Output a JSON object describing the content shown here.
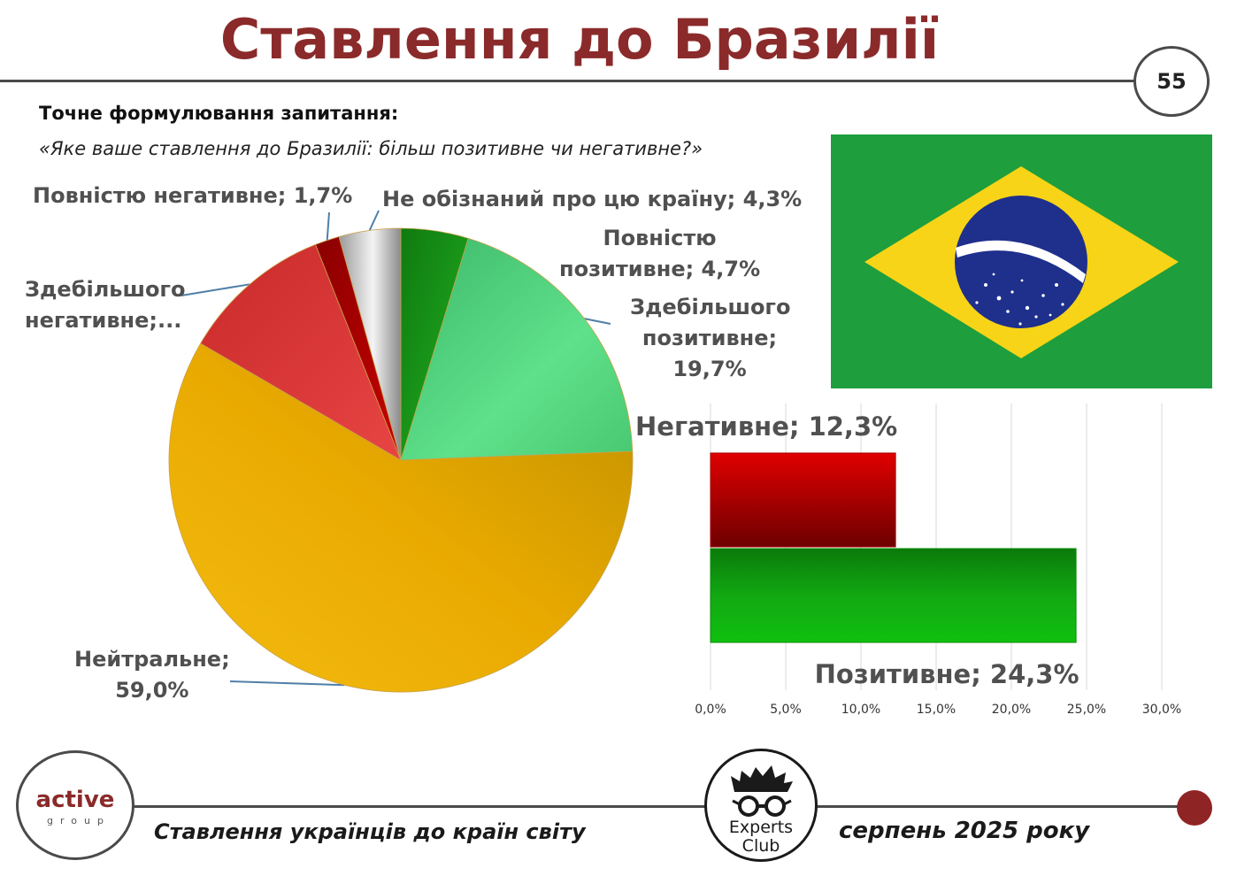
{
  "header": {
    "title": "Ставлення до Бразилії",
    "page_number": "55"
  },
  "question": {
    "label": "Точне формулювання запитання:",
    "text": "«Яке ваше ставлення до Бразилії: більш позитивне чи негативне?»"
  },
  "footer": {
    "left_text": "Ставлення українців до країн світу",
    "right_text": "серпень 2025 року",
    "active_logo_word": "active",
    "active_logo_sub": "group",
    "experts_logo_line1": "Experts",
    "experts_logo_line2": "Club"
  },
  "colors": {
    "title": "#8b2a2a",
    "accent_dot": "#8f2424"
  },
  "chart_data": [
    {
      "type": "pie",
      "title": "",
      "slices": [
        {
          "label": "Повністю позитивне",
          "value": 4.7,
          "color": "#1f9a1f",
          "data_label": [
            "Повністю",
            "позитивне; 4,7%"
          ]
        },
        {
          "label": "Здебільшого позитивне",
          "value": 19.7,
          "color": "#4fd07a",
          "data_label": [
            "Здебільшого",
            "позитивне;",
            "19,7%"
          ]
        },
        {
          "label": "Нейтральне",
          "value": 59.0,
          "color": "#e6a900",
          "data_label": [
            "Нейтральне;",
            "59,0%"
          ]
        },
        {
          "label": "Здебільшого негативне",
          "value": 10.6,
          "color": "#dc3535",
          "data_label": [
            "Здебільшого",
            "негативне;..."
          ]
        },
        {
          "label": "Повністю негативне",
          "value": 1.7,
          "color": "#b00000",
          "data_label": [
            "Повністю негативне; 1,7%"
          ]
        },
        {
          "label": "Не обізнаний про цю країну",
          "value": 4.3,
          "color": "#b8b8b8",
          "data_label": [
            "Не обізнаний про цю країну; 4,3%"
          ]
        }
      ]
    },
    {
      "type": "bar",
      "orientation": "horizontal",
      "title": "",
      "categories": [
        "Негативне",
        "Позитивне"
      ],
      "values": [
        12.3,
        24.3
      ],
      "data_labels": [
        "Негативне; 12,3%",
        "Позитивне; 24,3%"
      ],
      "colors": [
        "#b30000",
        "#12a812"
      ],
      "xlim": [
        0,
        30
      ],
      "xticks": [
        "0,0%",
        "5,0%",
        "10,0%",
        "15,0%",
        "20,0%",
        "25,0%",
        "30,0%"
      ],
      "grid": true
    }
  ]
}
